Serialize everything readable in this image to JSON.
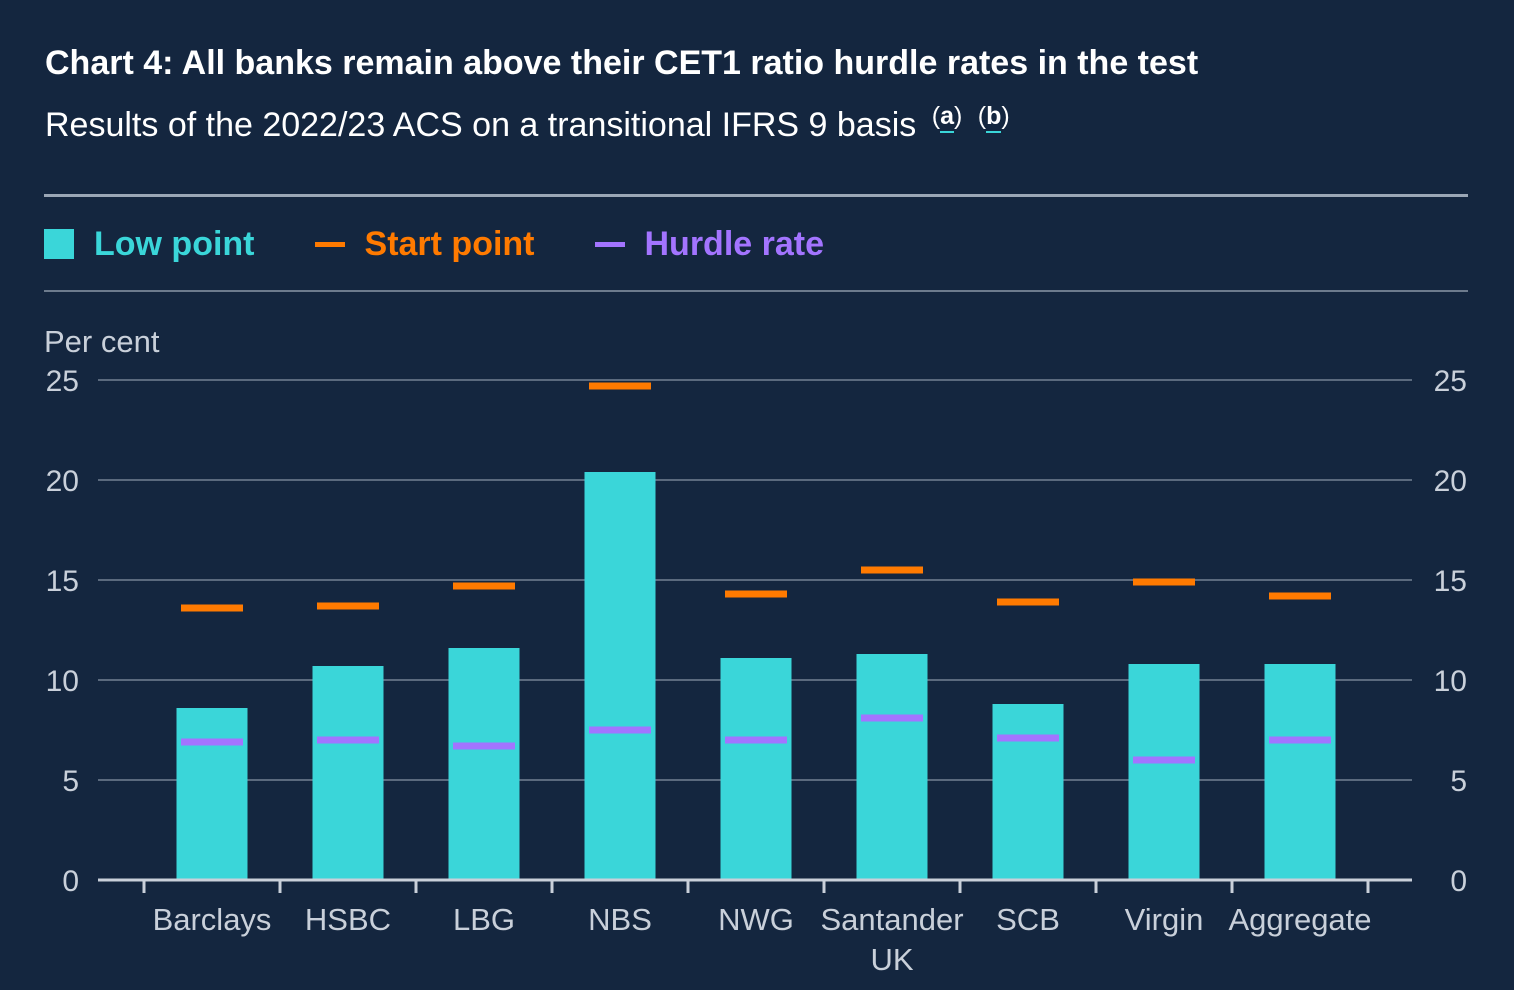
{
  "header": {
    "title": "Chart 4: All banks remain above their CET1 ratio hurdle rates in the test",
    "subtitle": "Results of the 2022/23 ACS on a transitional IFRS 9 basis",
    "footnotes": [
      "a",
      "b"
    ]
  },
  "legend": [
    {
      "label": "Low point",
      "color": "#3ad6d9",
      "shape": "square"
    },
    {
      "label": "Start point",
      "color": "#ff7a00",
      "shape": "line"
    },
    {
      "label": "Hurdle rate",
      "color": "#a374ff",
      "shape": "line"
    }
  ],
  "chart_data": {
    "type": "bar",
    "title": "Chart 4: All banks remain above their CET1 ratio hurdle rates in the test",
    "subtitle": "Results of the 2022/23 ACS on a transitional IFRS 9 basis",
    "ylabel": "Per cent",
    "ylim": [
      0,
      25
    ],
    "yticks": [
      0,
      5,
      10,
      15,
      20,
      25
    ],
    "secondary_y_axis": true,
    "grid": true,
    "legend_position": "top",
    "categories": [
      [
        "Barclays"
      ],
      [
        "HSBC"
      ],
      [
        "LBG"
      ],
      [
        "NBS"
      ],
      [
        "NWG"
      ],
      [
        "Santander",
        "UK"
      ],
      [
        "SCB"
      ],
      [
        "Virgin"
      ],
      [
        "Aggregate"
      ]
    ],
    "series": [
      {
        "name": "Low point",
        "type": "bar",
        "color": "#3ad6d9",
        "values": [
          8.6,
          10.7,
          11.6,
          20.4,
          11.1,
          11.3,
          8.8,
          10.8,
          10.8
        ]
      },
      {
        "name": "Start point",
        "type": "marker",
        "color": "#ff7a00",
        "values": [
          13.6,
          13.7,
          14.7,
          24.7,
          14.3,
          15.5,
          13.9,
          14.9,
          14.2
        ]
      },
      {
        "name": "Hurdle rate",
        "type": "marker",
        "color": "#a374ff",
        "values": [
          6.9,
          7.0,
          6.7,
          7.5,
          7.0,
          8.1,
          7.1,
          6.0,
          7.0
        ]
      }
    ]
  }
}
